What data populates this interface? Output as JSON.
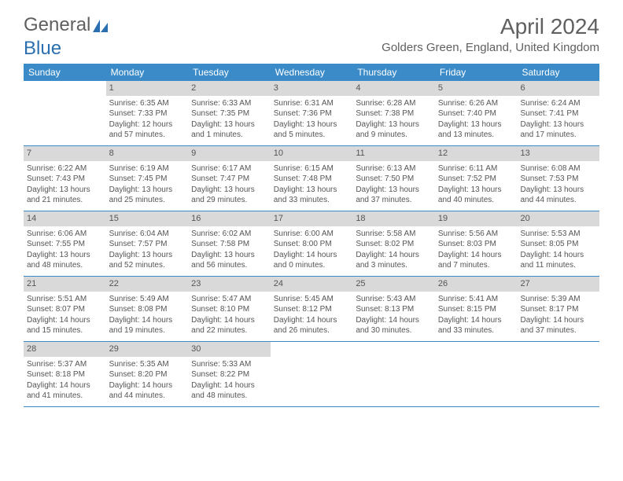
{
  "logo": {
    "text1": "General",
    "text2": "Blue"
  },
  "title": "April 2024",
  "location": "Golders Green, England, United Kingdom",
  "colors": {
    "header_bg": "#3b8bc9",
    "header_text": "#ffffff",
    "daynum_bg": "#d9d9d9",
    "text": "#555555",
    "logo_accent": "#2b6fb0"
  },
  "day_labels": [
    "Sunday",
    "Monday",
    "Tuesday",
    "Wednesday",
    "Thursday",
    "Friday",
    "Saturday"
  ],
  "weeks": [
    [
      null,
      {
        "n": "1",
        "sr": "6:35 AM",
        "ss": "7:33 PM",
        "dl": "12 hours and 57 minutes."
      },
      {
        "n": "2",
        "sr": "6:33 AM",
        "ss": "7:35 PM",
        "dl": "13 hours and 1 minutes."
      },
      {
        "n": "3",
        "sr": "6:31 AM",
        "ss": "7:36 PM",
        "dl": "13 hours and 5 minutes."
      },
      {
        "n": "4",
        "sr": "6:28 AM",
        "ss": "7:38 PM",
        "dl": "13 hours and 9 minutes."
      },
      {
        "n": "5",
        "sr": "6:26 AM",
        "ss": "7:40 PM",
        "dl": "13 hours and 13 minutes."
      },
      {
        "n": "6",
        "sr": "6:24 AM",
        "ss": "7:41 PM",
        "dl": "13 hours and 17 minutes."
      }
    ],
    [
      {
        "n": "7",
        "sr": "6:22 AM",
        "ss": "7:43 PM",
        "dl": "13 hours and 21 minutes."
      },
      {
        "n": "8",
        "sr": "6:19 AM",
        "ss": "7:45 PM",
        "dl": "13 hours and 25 minutes."
      },
      {
        "n": "9",
        "sr": "6:17 AM",
        "ss": "7:47 PM",
        "dl": "13 hours and 29 minutes."
      },
      {
        "n": "10",
        "sr": "6:15 AM",
        "ss": "7:48 PM",
        "dl": "13 hours and 33 minutes."
      },
      {
        "n": "11",
        "sr": "6:13 AM",
        "ss": "7:50 PM",
        "dl": "13 hours and 37 minutes."
      },
      {
        "n": "12",
        "sr": "6:11 AM",
        "ss": "7:52 PM",
        "dl": "13 hours and 40 minutes."
      },
      {
        "n": "13",
        "sr": "6:08 AM",
        "ss": "7:53 PM",
        "dl": "13 hours and 44 minutes."
      }
    ],
    [
      {
        "n": "14",
        "sr": "6:06 AM",
        "ss": "7:55 PM",
        "dl": "13 hours and 48 minutes."
      },
      {
        "n": "15",
        "sr": "6:04 AM",
        "ss": "7:57 PM",
        "dl": "13 hours and 52 minutes."
      },
      {
        "n": "16",
        "sr": "6:02 AM",
        "ss": "7:58 PM",
        "dl": "13 hours and 56 minutes."
      },
      {
        "n": "17",
        "sr": "6:00 AM",
        "ss": "8:00 PM",
        "dl": "14 hours and 0 minutes."
      },
      {
        "n": "18",
        "sr": "5:58 AM",
        "ss": "8:02 PM",
        "dl": "14 hours and 3 minutes."
      },
      {
        "n": "19",
        "sr": "5:56 AM",
        "ss": "8:03 PM",
        "dl": "14 hours and 7 minutes."
      },
      {
        "n": "20",
        "sr": "5:53 AM",
        "ss": "8:05 PM",
        "dl": "14 hours and 11 minutes."
      }
    ],
    [
      {
        "n": "21",
        "sr": "5:51 AM",
        "ss": "8:07 PM",
        "dl": "14 hours and 15 minutes."
      },
      {
        "n": "22",
        "sr": "5:49 AM",
        "ss": "8:08 PM",
        "dl": "14 hours and 19 minutes."
      },
      {
        "n": "23",
        "sr": "5:47 AM",
        "ss": "8:10 PM",
        "dl": "14 hours and 22 minutes."
      },
      {
        "n": "24",
        "sr": "5:45 AM",
        "ss": "8:12 PM",
        "dl": "14 hours and 26 minutes."
      },
      {
        "n": "25",
        "sr": "5:43 AM",
        "ss": "8:13 PM",
        "dl": "14 hours and 30 minutes."
      },
      {
        "n": "26",
        "sr": "5:41 AM",
        "ss": "8:15 PM",
        "dl": "14 hours and 33 minutes."
      },
      {
        "n": "27",
        "sr": "5:39 AM",
        "ss": "8:17 PM",
        "dl": "14 hours and 37 minutes."
      }
    ],
    [
      {
        "n": "28",
        "sr": "5:37 AM",
        "ss": "8:18 PM",
        "dl": "14 hours and 41 minutes."
      },
      {
        "n": "29",
        "sr": "5:35 AM",
        "ss": "8:20 PM",
        "dl": "14 hours and 44 minutes."
      },
      {
        "n": "30",
        "sr": "5:33 AM",
        "ss": "8:22 PM",
        "dl": "14 hours and 48 minutes."
      },
      null,
      null,
      null,
      null
    ]
  ],
  "labels": {
    "sunrise": "Sunrise:",
    "sunset": "Sunset:",
    "daylight": "Daylight:"
  }
}
